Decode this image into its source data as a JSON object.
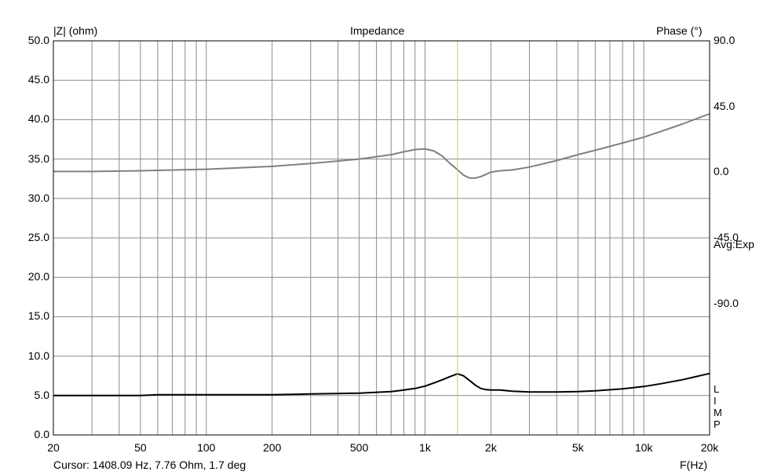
{
  "chart_data": {
    "type": "line",
    "title": "Impedance",
    "ylabel": "|Z| (ohm)",
    "ylabel_right": "Phase (°)",
    "xlabel": "F(Hz)",
    "x_scale": "log",
    "xlim": [
      20,
      20000
    ],
    "ylim": [
      0,
      50
    ],
    "ylim_right": [
      -180,
      90
    ],
    "grid": true,
    "x_ticks": [
      20,
      50,
      100,
      200,
      500,
      1000,
      2000,
      5000,
      10000,
      20000
    ],
    "x_tick_labels": [
      "20",
      "50",
      "100",
      "200",
      "500",
      "1k",
      "2k",
      "5k",
      "10k",
      "20k"
    ],
    "y_ticks": [
      0,
      5,
      10,
      15,
      20,
      25,
      30,
      35,
      40,
      45,
      50
    ],
    "y_tick_labels": [
      "0.0",
      "5.0",
      "10.0",
      "15.0",
      "20.0",
      "25.0",
      "30.0",
      "35.0",
      "40.0",
      "45.0",
      "50.0"
    ],
    "y_right_ticks": [
      90,
      45,
      0,
      -45,
      -90
    ],
    "y_right_tick_labels": [
      "90.0",
      "45.0",
      "0.0",
      "-45.0",
      "-90.0"
    ],
    "side_text": "Avg:Exp",
    "lim_letters": [
      "L",
      "I",
      "M",
      "P"
    ],
    "cursor": {
      "x": 1408.09,
      "color": "#e8c830",
      "label": "Cursor: 1408.09 Hz, 7.76 Ohm, 1.7 deg"
    },
    "series": [
      {
        "color": "#000000",
        "axis": "left",
        "x": [
          20,
          30,
          50,
          60,
          100,
          200,
          300,
          500,
          700,
          800,
          900,
          1000,
          1100,
          1200,
          1300,
          1408,
          1500,
          1600,
          1700,
          1800,
          1900,
          2000,
          2200,
          2500,
          3000,
          4000,
          5000,
          6000,
          8000,
          10000,
          12000,
          15000,
          20000
        ],
        "values": [
          5.0,
          5.0,
          5.0,
          5.1,
          5.1,
          5.1,
          5.2,
          5.3,
          5.5,
          5.7,
          5.9,
          6.2,
          6.6,
          7.0,
          7.4,
          7.76,
          7.5,
          6.9,
          6.3,
          5.9,
          5.75,
          5.7,
          5.7,
          5.55,
          5.45,
          5.45,
          5.5,
          5.6,
          5.85,
          6.15,
          6.5,
          7.0,
          7.8
        ]
      },
      {
        "color": "#808080",
        "axis": "right",
        "x": [
          20,
          30,
          50,
          100,
          200,
          300,
          500,
          700,
          800,
          900,
          1000,
          1100,
          1200,
          1300,
          1408,
          1500,
          1600,
          1700,
          1800,
          1900,
          2000,
          2200,
          2500,
          3000,
          4000,
          5000,
          6000,
          8000,
          10000,
          12000,
          15000,
          20000
        ],
        "values": [
          0.5,
          0.5,
          1.0,
          2.0,
          4.0,
          6.0,
          9.0,
          12.0,
          14.0,
          15.5,
          16.0,
          14.5,
          11.0,
          6.0,
          1.7,
          -2.0,
          -4.0,
          -4.0,
          -3.0,
          -1.5,
          0.0,
          1.0,
          1.5,
          3.5,
          8.0,
          12.0,
          15.0,
          20.0,
          24.0,
          28.0,
          33.0,
          40.0
        ]
      }
    ]
  }
}
